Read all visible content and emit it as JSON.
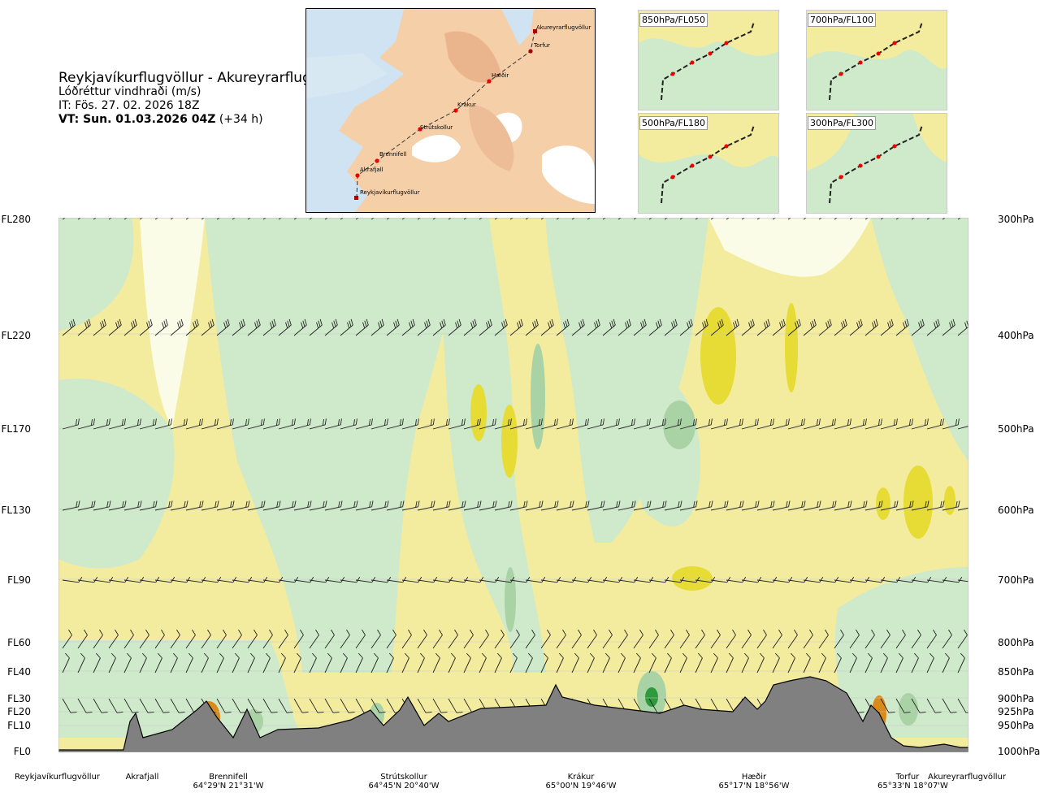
{
  "header": {
    "route": "Reykjavíkurflugvöllur - Akureyrarflugvöllur",
    "variable": "Lóðréttur vindhraði (m/s)",
    "issue_time": "IT: Fös. 27. 02. 2026 18Z",
    "valid_prefix": "VT: Sun. 01.03.2026 04Z",
    "valid_suffix": "(+34 h)"
  },
  "map": {
    "places": [
      {
        "name": "Akureyrarflugvöllur"
      },
      {
        "name": "Torfur"
      },
      {
        "name": "Hæðir"
      },
      {
        "name": "Krákur"
      },
      {
        "name": "Strútskollur"
      },
      {
        "name": "Brennifell"
      },
      {
        "name": "Akrafjall"
      },
      {
        "name": "Reykjavíkurflugvöllur"
      }
    ]
  },
  "insets": [
    {
      "label": "850hPa/FL050"
    },
    {
      "label": "700hPa/FL100"
    },
    {
      "label": "500hPa/FL180"
    },
    {
      "label": "300hPa/FL300"
    }
  ],
  "levels": [
    {
      "fl": "FL280",
      "hpa": "300hPa"
    },
    {
      "fl": "FL220",
      "hpa": "400hPa"
    },
    {
      "fl": "FL170",
      "hpa": "500hPa"
    },
    {
      "fl": "FL130",
      "hpa": "600hPa"
    },
    {
      "fl": "FL90",
      "hpa": "700hPa"
    },
    {
      "fl": "FL60",
      "hpa": "800hPa"
    },
    {
      "fl": "FL40",
      "hpa": "850hPa"
    },
    {
      "fl": "FL30",
      "hpa": "900hPa"
    },
    {
      "fl": "FL20",
      "hpa": "925hPa"
    },
    {
      "fl": "FL10",
      "hpa": "950hPa"
    },
    {
      "fl": "FL0",
      "hpa": "1000hPa"
    }
  ],
  "bottom_labels": [
    {
      "name": "Reykjavíkurflugvöllur",
      "coord": ""
    },
    {
      "name": "Akrafjall",
      "coord": ""
    },
    {
      "name": "Brennifell",
      "coord": "64°29'N 21°31'W"
    },
    {
      "name": "Strútskollur",
      "coord": "64°45'N 20°40'W"
    },
    {
      "name": "Krákur",
      "coord": "65°00'N 19°46'W"
    },
    {
      "name": "Hæðir",
      "coord": "65°17'N 18°56'W"
    },
    {
      "name": "Torfur",
      "coord": "65°33'N 18°07'W"
    },
    {
      "name": "Akureyrarflugvöllur",
      "coord": ""
    }
  ],
  "colors": {
    "updraft_yellow": "#f3ec9e",
    "updraft_strong": "#e6dc35",
    "downdraft_green": "#cfe9cb",
    "downdraft_strong": "#a9d3a5",
    "downdraft_strongest": "#2e9a3e",
    "near_zero": "#fbfce8",
    "terrain": "#808080",
    "sea": "#cfe3f3"
  }
}
